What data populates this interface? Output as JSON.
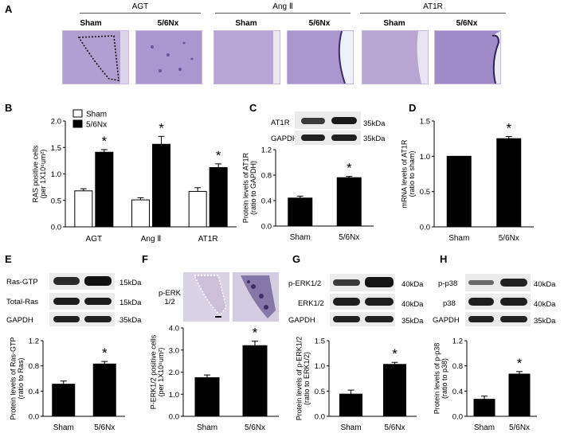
{
  "panels": {
    "A": {
      "label": "A",
      "groups": [
        {
          "title": "AGT",
          "conditions": [
            "Sham",
            "5/6Nx"
          ]
        },
        {
          "title": "Ang Ⅱ",
          "conditions": [
            "Sham",
            "5/6Nx"
          ]
        },
        {
          "title": "AT1R",
          "conditions": [
            "Sham",
            "5/6Nx"
          ]
        }
      ]
    },
    "B": {
      "label": "B",
      "legend": [
        "Sham",
        "5/6Nx"
      ]
    },
    "C": {
      "label": "C",
      "blot": [
        {
          "name": "AT1R",
          "kda": "35kDa"
        },
        {
          "name": "GAPDH",
          "kda": "35kDa"
        }
      ]
    },
    "D": {
      "label": "D"
    },
    "E": {
      "label": "E",
      "blot": [
        {
          "name": "Ras-GTP",
          "kda": "15kDa"
        },
        {
          "name": "Total-Ras",
          "kda": "15kDa"
        },
        {
          "name": "GAPDH",
          "kda": "35kDa"
        }
      ]
    },
    "F": {
      "label": "F",
      "stain_label": "p-ERK 1/2"
    },
    "G": {
      "label": "G",
      "blot": [
        {
          "name": "p-ERK1/2",
          "kda": "40kDa"
        },
        {
          "name": "ERK1/2",
          "kda": "40kDa"
        },
        {
          "name": "GAPDH",
          "kda": "35kDa"
        }
      ]
    },
    "H": {
      "label": "H",
      "blot": [
        {
          "name": "p-p38",
          "kda": "40kDa"
        },
        {
          "name": "p38",
          "kda": "40kDa"
        },
        {
          "name": "GAPDH",
          "kda": "35kDa"
        }
      ]
    }
  },
  "colors": {
    "sham": "#ffffff",
    "nx": "#000000",
    "stain": "#9e8ac6"
  },
  "chart_data": [
    {
      "id": "B",
      "type": "bar",
      "categories": [
        "AGT",
        "Ang Ⅱ",
        "AT1R"
      ],
      "series": [
        {
          "name": "Sham",
          "values": [
            0.68,
            0.51,
            0.67
          ],
          "errors": [
            0.04,
            0.04,
            0.07
          ]
        },
        {
          "name": "5/6Nx",
          "values": [
            1.41,
            1.56,
            1.12
          ],
          "errors": [
            0.05,
            0.15,
            0.07
          ]
        }
      ],
      "significance": [
        "*",
        "*",
        "*"
      ],
      "ylabel": "RAS positive cells (per 1X10⁶um²)",
      "ylim": [
        0,
        2.0
      ],
      "yticks": [
        "0.0",
        "0.5",
        "1.0",
        "1.5",
        "2.0"
      ]
    },
    {
      "id": "C",
      "type": "bar",
      "categories": [
        "Sham",
        "5/6Nx"
      ],
      "values": [
        0.44,
        0.76
      ],
      "errors": [
        0.03,
        0.02
      ],
      "significance": [
        "",
        "*"
      ],
      "ylabel": "Protein levels of AT1R (ratio to GAPDH)",
      "ylim": [
        0,
        1.2
      ],
      "yticks": [
        "0.0",
        "0.4",
        "0.8",
        "1.2"
      ]
    },
    {
      "id": "D",
      "type": "bar",
      "categories": [
        "Sham",
        "5/6Nx"
      ],
      "values": [
        1.0,
        1.25
      ],
      "errors": [
        0.0,
        0.03
      ],
      "significance": [
        "",
        "*"
      ],
      "ylabel": "mRNA levels of AT1R (ratio to sham)",
      "ylim": [
        0,
        1.5
      ],
      "yticks": [
        "0.0",
        "0.5",
        "1.0",
        "1.5"
      ]
    },
    {
      "id": "E",
      "type": "bar",
      "categories": [
        "Sham",
        "5/6Nx"
      ],
      "values": [
        0.51,
        0.83
      ],
      "errors": [
        0.05,
        0.04
      ],
      "significance": [
        "",
        "*"
      ],
      "ylabel": "Protein levels of Ras-GTP (ratio to Ras)",
      "ylim": [
        0,
        1.2
      ],
      "yticks": [
        "0.0",
        "0.4",
        "0.8",
        "1.2"
      ]
    },
    {
      "id": "F",
      "type": "bar",
      "categories": [
        "Sham",
        "5/6Nx"
      ],
      "values": [
        1.75,
        3.2
      ],
      "errors": [
        0.12,
        0.2
      ],
      "significance": [
        "",
        "*"
      ],
      "ylabel": "P-ERK1/2 positive cells (per 1X10⁶um²)",
      "ylim": [
        0,
        4.0
      ],
      "yticks": [
        "0.0",
        "1.0",
        "2.0",
        "3.0",
        "4.0"
      ]
    },
    {
      "id": "G",
      "type": "bar",
      "categories": [
        "Sham",
        "5/6Nx"
      ],
      "values": [
        0.44,
        1.03
      ],
      "errors": [
        0.08,
        0.04
      ],
      "significance": [
        "",
        "*"
      ],
      "ylabel": "Protein levels of p-ERK1/2 (ratio to ERK1/2)",
      "ylim": [
        0,
        1.5
      ],
      "yticks": [
        "0.0",
        "0.5",
        "1.0",
        "1.5"
      ]
    },
    {
      "id": "H",
      "type": "bar",
      "categories": [
        "Sham",
        "5/6Nx"
      ],
      "values": [
        0.27,
        0.67
      ],
      "errors": [
        0.05,
        0.04
      ],
      "significance": [
        "",
        "*"
      ],
      "ylabel": "Protein levels of p-p38 (ratio to p38)",
      "ylim": [
        0,
        1.2
      ],
      "yticks": [
        "0.0",
        "0.4",
        "0.8",
        "1.2"
      ]
    }
  ]
}
